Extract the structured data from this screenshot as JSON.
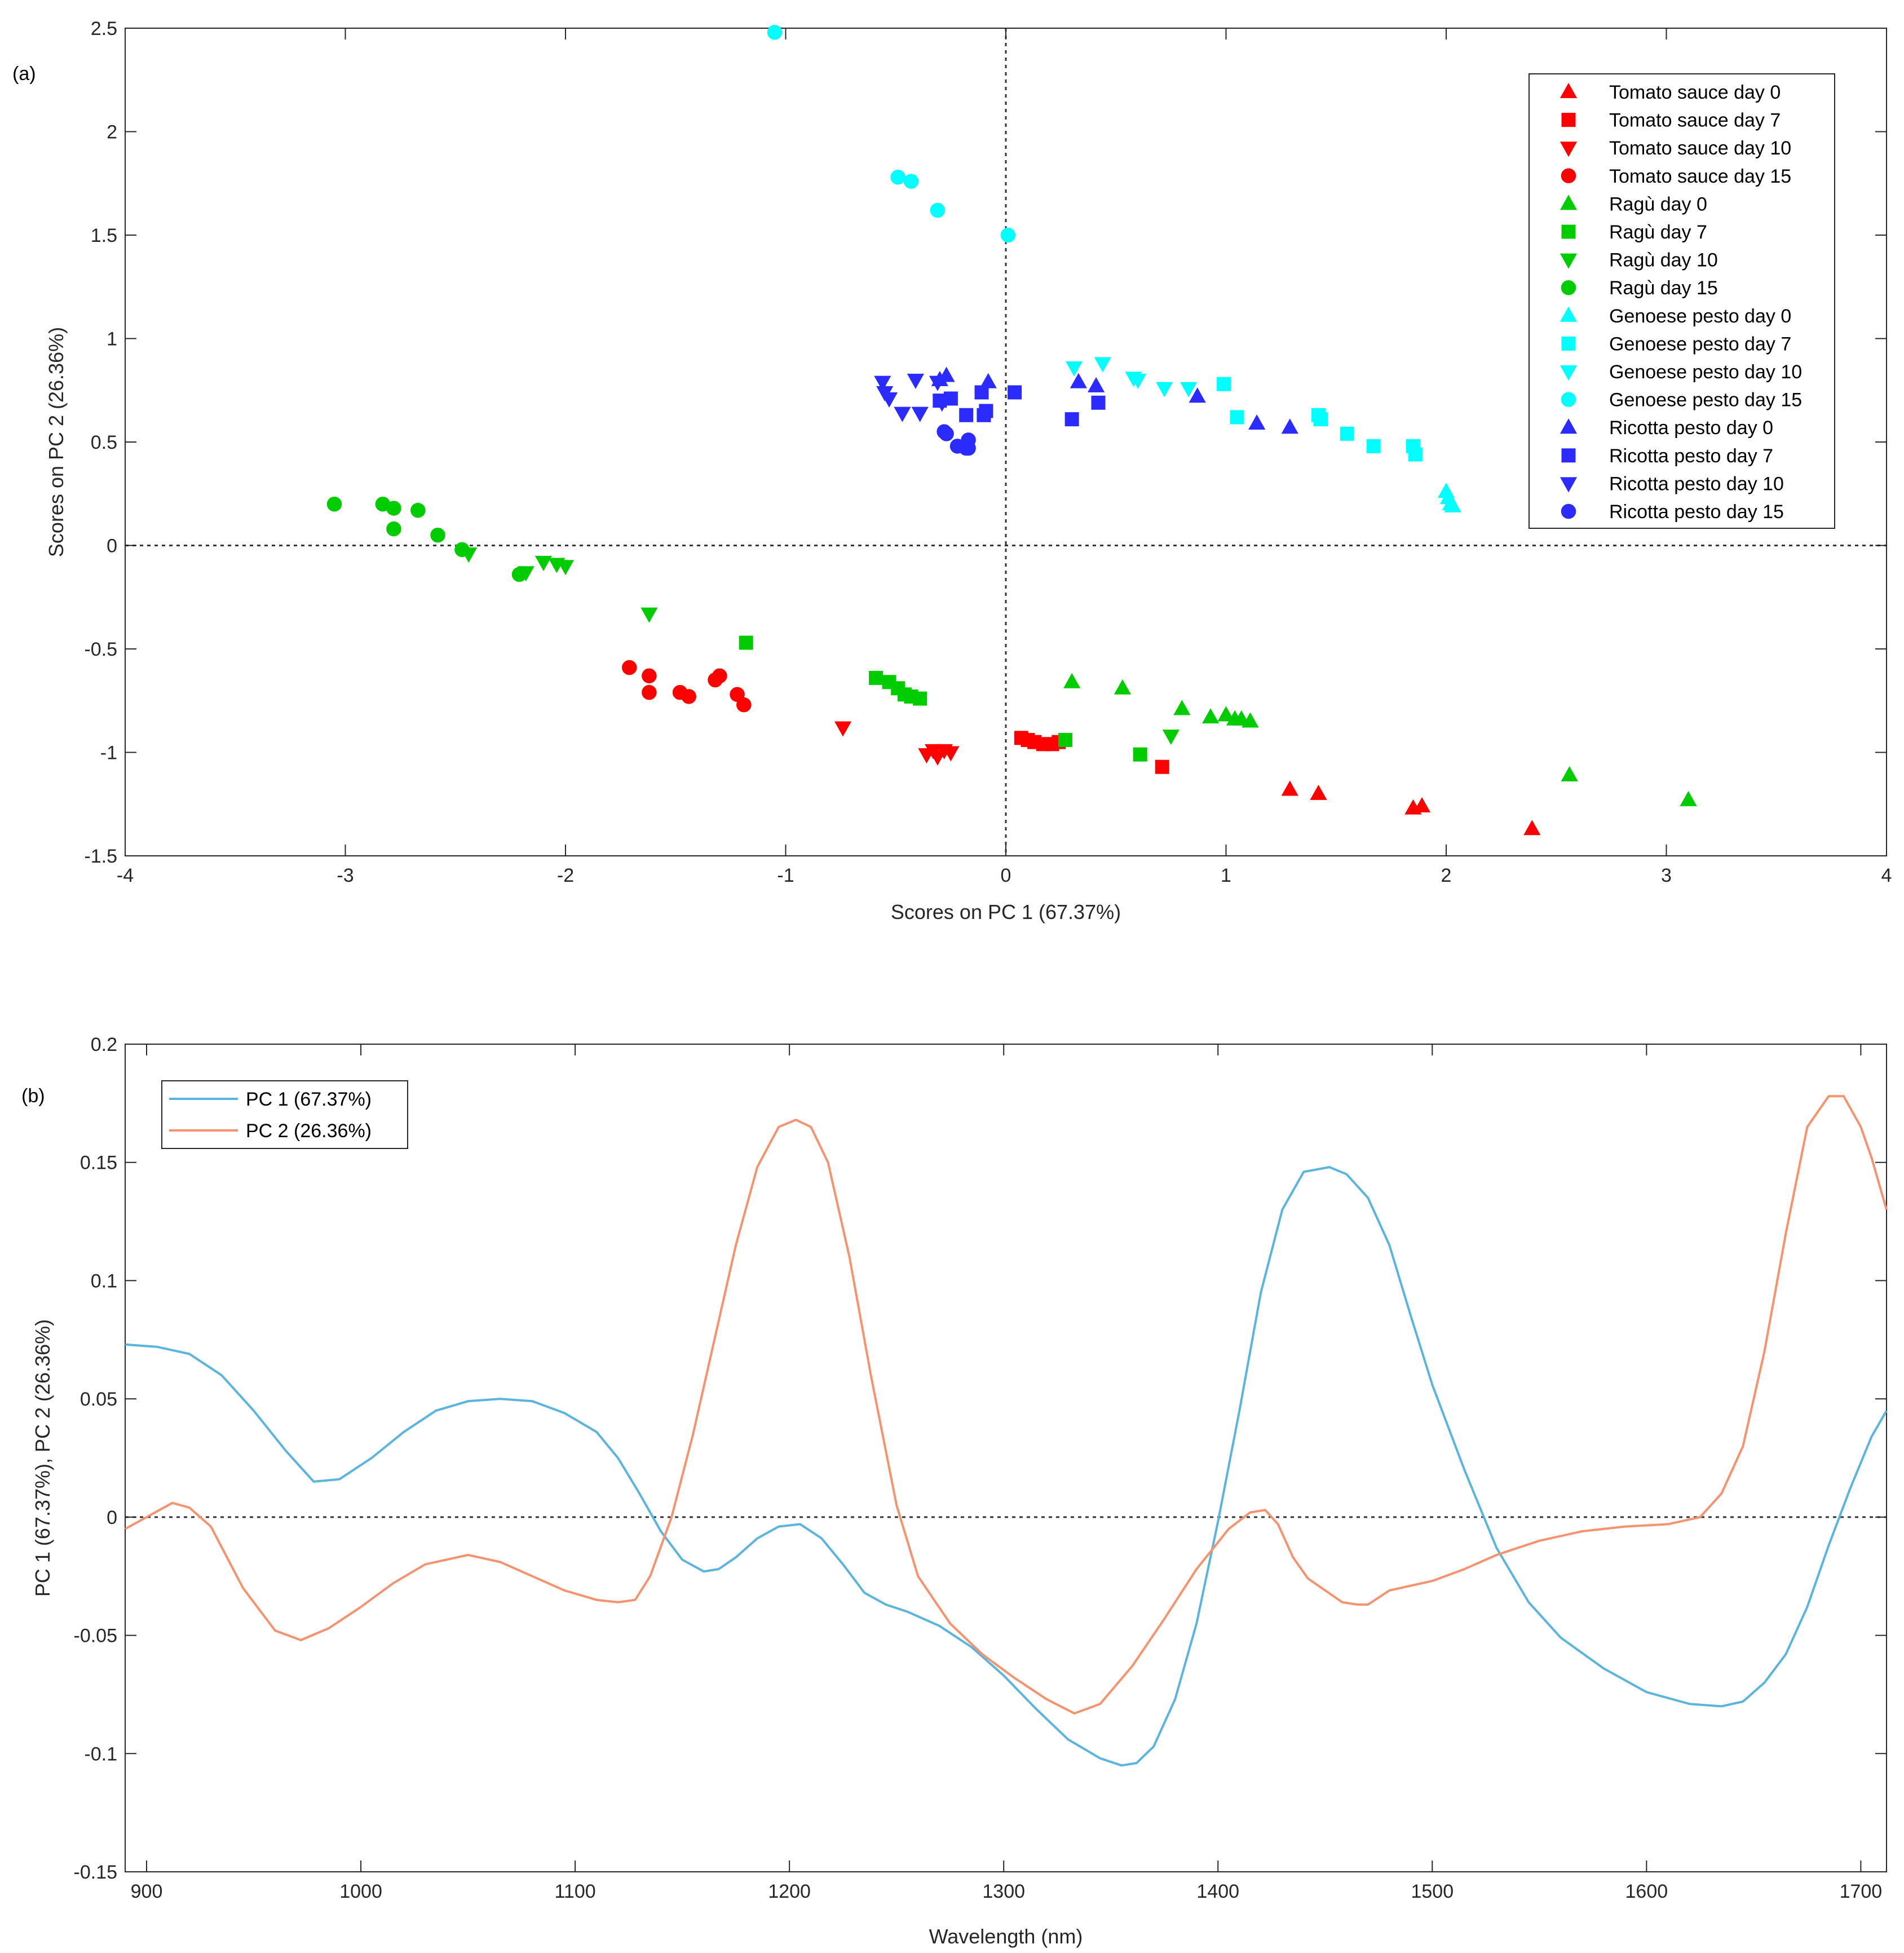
{
  "colors": {
    "tomato": "#ff0000",
    "ragu": "#00cc00",
    "genoese": "#00ffff",
    "ricotta": "#2b2bff",
    "pc1": "#5ab4e0",
    "pc2": "#f7926e",
    "axis": "#262626",
    "zero_line": "#333333"
  },
  "chart_data": [
    {
      "type": "scatter",
      "panel_label": "(a)",
      "title": "",
      "xlabel": "Scores on PC 1 (67.37%)",
      "ylabel": "Scores on PC 2 (26.36%)",
      "xlim": [
        -4,
        4
      ],
      "ylim": [
        -1.5,
        2.5
      ],
      "xticks": [
        -4,
        -3,
        -2,
        -1,
        0,
        1,
        2,
        3,
        4
      ],
      "xtick_labels": [
        "-4",
        "-3",
        "-2",
        "-1",
        "0",
        "1",
        "2",
        "3",
        "4"
      ],
      "yticks": [
        -1.5,
        -1,
        -0.5,
        0,
        0.5,
        1,
        1.5,
        2,
        2.5
      ],
      "ytick_labels": [
        "-1.5",
        "-1",
        "-0.5",
        "0",
        "0.5",
        "1",
        "1.5",
        "2",
        "2.5"
      ],
      "reference_lines": {
        "x": 0,
        "y": 0,
        "style": "dotted"
      },
      "legend_position": "top-right",
      "series": [
        {
          "name": "Tomato sauce day 0",
          "group": "tomato",
          "marker": "triangle-up",
          "points": [
            [
              1.29,
              -1.18
            ],
            [
              1.42,
              -1.2
            ],
            [
              1.85,
              -1.27
            ],
            [
              1.89,
              -1.26
            ],
            [
              2.39,
              -1.37
            ]
          ]
        },
        {
          "name": "Tomato sauce day 7",
          "group": "tomato",
          "marker": "square",
          "points": [
            [
              0.07,
              -0.93
            ],
            [
              0.1,
              -0.94
            ],
            [
              0.13,
              -0.95
            ],
            [
              0.17,
              -0.96
            ],
            [
              0.21,
              -0.96
            ],
            [
              0.24,
              -0.95
            ],
            [
              0.71,
              -1.07
            ]
          ]
        },
        {
          "name": "Tomato sauce day 10",
          "group": "tomato",
          "marker": "triangle-down",
          "points": [
            [
              -0.74,
              -0.88
            ],
            [
              -0.36,
              -1.01
            ],
            [
              -0.33,
              -0.99
            ],
            [
              -0.31,
              -1.02
            ],
            [
              -0.28,
              -0.99
            ],
            [
              -0.25,
              -1.0
            ]
          ]
        },
        {
          "name": "Tomato sauce day 15",
          "group": "tomato",
          "marker": "circle",
          "points": [
            [
              -1.71,
              -0.59
            ],
            [
              -1.62,
              -0.63
            ],
            [
              -1.62,
              -0.71
            ],
            [
              -1.48,
              -0.71
            ],
            [
              -1.44,
              -0.73
            ],
            [
              -1.32,
              -0.65
            ],
            [
              -1.3,
              -0.63
            ],
            [
              -1.22,
              -0.72
            ],
            [
              -1.19,
              -0.77
            ]
          ]
        },
        {
          "name": "Ragù day 0",
          "group": "ragu",
          "marker": "triangle-up",
          "points": [
            [
              0.3,
              -0.66
            ],
            [
              0.53,
              -0.69
            ],
            [
              0.8,
              -0.79
            ],
            [
              0.93,
              -0.83
            ],
            [
              1.0,
              -0.82
            ],
            [
              1.04,
              -0.84
            ],
            [
              1.07,
              -0.84
            ],
            [
              1.11,
              -0.85
            ],
            [
              2.56,
              -1.11
            ],
            [
              3.1,
              -1.23
            ]
          ]
        },
        {
          "name": "Ragù day 7",
          "group": "ragu",
          "marker": "square",
          "points": [
            [
              -1.18,
              -0.47
            ],
            [
              -0.59,
              -0.64
            ],
            [
              -0.53,
              -0.66
            ],
            [
              -0.49,
              -0.69
            ],
            [
              -0.46,
              -0.72
            ],
            [
              -0.43,
              -0.73
            ],
            [
              -0.39,
              -0.74
            ],
            [
              0.27,
              -0.94
            ],
            [
              0.61,
              -1.01
            ]
          ]
        },
        {
          "name": "Ragù day 10",
          "group": "ragu",
          "marker": "triangle-down",
          "points": [
            [
              -2.44,
              -0.04
            ],
            [
              -2.18,
              -0.13
            ],
            [
              -2.1,
              -0.08
            ],
            [
              -2.04,
              -0.09
            ],
            [
              -2.0,
              -0.1
            ],
            [
              -1.62,
              -0.33
            ],
            [
              0.75,
              -0.92
            ]
          ]
        },
        {
          "name": "Ragù day 15",
          "group": "ragu",
          "marker": "circle",
          "points": [
            [
              -3.05,
              0.2
            ],
            [
              -2.83,
              0.2
            ],
            [
              -2.78,
              0.18
            ],
            [
              -2.78,
              0.08
            ],
            [
              -2.67,
              0.17
            ],
            [
              -2.58,
              0.05
            ],
            [
              -2.47,
              -0.02
            ],
            [
              -2.21,
              -0.14
            ]
          ]
        },
        {
          "name": "Genoese pesto day 0",
          "group": "genoese",
          "marker": "triangle-up",
          "points": [
            [
              2.0,
              0.26
            ],
            [
              2.01,
              0.23
            ],
            [
              2.02,
              0.2
            ],
            [
              2.03,
              0.19
            ]
          ]
        },
        {
          "name": "Genoese pesto day 7",
          "group": "genoese",
          "marker": "square",
          "points": [
            [
              0.99,
              0.78
            ],
            [
              1.05,
              0.62
            ],
            [
              1.42,
              0.63
            ],
            [
              1.43,
              0.61
            ],
            [
              1.55,
              0.54
            ],
            [
              1.67,
              0.48
            ],
            [
              1.85,
              0.48
            ],
            [
              1.86,
              0.44
            ]
          ]
        },
        {
          "name": "Genoese pesto day 10",
          "group": "genoese",
          "marker": "triangle-down",
          "points": [
            [
              0.31,
              0.86
            ],
            [
              0.44,
              0.88
            ],
            [
              0.58,
              0.81
            ],
            [
              0.6,
              0.8
            ],
            [
              0.72,
              0.76
            ],
            [
              0.83,
              0.76
            ]
          ]
        },
        {
          "name": "Genoese pesto day 15",
          "group": "genoese",
          "marker": "circle",
          "points": [
            [
              -1.05,
              2.48
            ],
            [
              -0.49,
              1.78
            ],
            [
              -0.43,
              1.76
            ],
            [
              -0.31,
              1.62
            ],
            [
              0.01,
              1.5
            ]
          ]
        },
        {
          "name": "Ricotta pesto day 0",
          "group": "ricotta",
          "marker": "triangle-up",
          "points": [
            [
              -0.3,
              0.8
            ],
            [
              -0.27,
              0.82
            ],
            [
              -0.08,
              0.79
            ],
            [
              0.33,
              0.79
            ],
            [
              0.41,
              0.77
            ],
            [
              0.87,
              0.72
            ],
            [
              1.14,
              0.59
            ],
            [
              1.29,
              0.57
            ]
          ]
        },
        {
          "name": "Ricotta pesto day 7",
          "group": "ricotta",
          "marker": "square",
          "points": [
            [
              -0.3,
              0.7
            ],
            [
              -0.25,
              0.71
            ],
            [
              -0.18,
              0.63
            ],
            [
              -0.11,
              0.74
            ],
            [
              -0.1,
              0.63
            ],
            [
              -0.09,
              0.65
            ],
            [
              0.04,
              0.74
            ],
            [
              0.3,
              0.61
            ],
            [
              0.42,
              0.69
            ]
          ]
        },
        {
          "name": "Ricotta pesto day 10",
          "group": "ricotta",
          "marker": "triangle-down",
          "points": [
            [
              -0.56,
              0.79
            ],
            [
              -0.55,
              0.74
            ],
            [
              -0.53,
              0.71
            ],
            [
              -0.47,
              0.64
            ],
            [
              -0.41,
              0.8
            ],
            [
              -0.39,
              0.64
            ],
            [
              -0.31,
              0.79
            ],
            [
              -0.29,
              0.69
            ]
          ]
        },
        {
          "name": "Ricotta pesto day 15",
          "group": "ricotta",
          "marker": "circle",
          "points": [
            [
              -0.28,
              0.55
            ],
            [
              -0.27,
              0.54
            ],
            [
              -0.22,
              0.48
            ],
            [
              -0.18,
              0.47
            ],
            [
              -0.17,
              0.51
            ],
            [
              -0.17,
              0.47
            ]
          ]
        }
      ]
    },
    {
      "type": "line",
      "panel_label": "(b)",
      "title": "",
      "xlabel": "Wavelength (nm)",
      "ylabel": "PC 1 (67.37%), PC 2 (26.36%)",
      "xlim": [
        890,
        1712
      ],
      "ylim": [
        -0.15,
        0.2
      ],
      "xticks": [
        900,
        1000,
        1100,
        1200,
        1300,
        1400,
        1500,
        1600,
        1700
      ],
      "xtick_labels": [
        "900",
        "1000",
        "1100",
        "1200",
        "1300",
        "1400",
        "1500",
        "1600",
        "1700"
      ],
      "yticks": [
        -0.15,
        -0.1,
        -0.05,
        0,
        0.05,
        0.1,
        0.15,
        0.2
      ],
      "ytick_labels": [
        "-0.15",
        "-0.1",
        "-0.05",
        "0",
        "0.05",
        "0.1",
        "0.15",
        "0.2"
      ],
      "reference_lines": {
        "y": 0,
        "style": "dotted"
      },
      "legend_position": "top-left",
      "series": [
        {
          "name": "PC 1 (67.37%)",
          "color_key": "pc1",
          "x": [
            890,
            905,
            920,
            935,
            950,
            965,
            978,
            990,
            1005,
            1020,
            1035,
            1050,
            1065,
            1080,
            1095,
            1110,
            1120,
            1130,
            1140,
            1150,
            1160,
            1167,
            1175,
            1185,
            1195,
            1205,
            1215,
            1225,
            1235,
            1245,
            1255,
            1270,
            1285,
            1300,
            1315,
            1330,
            1345,
            1355,
            1362,
            1370,
            1380,
            1390,
            1400,
            1410,
            1420,
            1430,
            1440,
            1452,
            1460,
            1470,
            1480,
            1490,
            1500,
            1515,
            1530,
            1545,
            1560,
            1580,
            1600,
            1620,
            1635,
            1645,
            1655,
            1665,
            1675,
            1685,
            1695,
            1705,
            1712
          ],
          "y": [
            0.073,
            0.072,
            0.069,
            0.06,
            0.045,
            0.028,
            0.015,
            0.016,
            0.025,
            0.036,
            0.045,
            0.049,
            0.05,
            0.049,
            0.044,
            0.036,
            0.025,
            0.01,
            -0.006,
            -0.018,
            -0.023,
            -0.022,
            -0.017,
            -0.009,
            -0.004,
            -0.003,
            -0.009,
            -0.02,
            -0.032,
            -0.037,
            -0.04,
            -0.046,
            -0.055,
            -0.067,
            -0.081,
            -0.094,
            -0.102,
            -0.105,
            -0.104,
            -0.097,
            -0.077,
            -0.045,
            -0.002,
            0.045,
            0.095,
            0.13,
            0.146,
            0.148,
            0.145,
            0.135,
            0.115,
            0.085,
            0.056,
            0.02,
            -0.013,
            -0.036,
            -0.051,
            -0.064,
            -0.074,
            -0.079,
            -0.08,
            -0.078,
            -0.07,
            -0.058,
            -0.038,
            -0.012,
            0.012,
            0.034,
            0.045
          ]
        },
        {
          "name": "PC 2 (26.36%)",
          "color_key": "pc2",
          "x": [
            890,
            900,
            912,
            920,
            930,
            945,
            960,
            972,
            985,
            1000,
            1015,
            1030,
            1050,
            1065,
            1080,
            1095,
            1110,
            1120,
            1128,
            1135,
            1145,
            1155,
            1165,
            1175,
            1185,
            1195,
            1203,
            1210,
            1218,
            1228,
            1238,
            1250,
            1260,
            1275,
            1290,
            1305,
            1320,
            1333,
            1345,
            1360,
            1375,
            1390,
            1405,
            1415,
            1422,
            1428,
            1435,
            1442,
            1450,
            1458,
            1465,
            1470,
            1475,
            1480,
            1490,
            1500,
            1515,
            1530,
            1550,
            1570,
            1590,
            1610,
            1625,
            1635,
            1645,
            1655,
            1665,
            1675,
            1685,
            1692,
            1700,
            1705,
            1712
          ],
          "y": [
            -0.005,
            0.0,
            0.006,
            0.004,
            -0.004,
            -0.03,
            -0.048,
            -0.052,
            -0.047,
            -0.038,
            -0.028,
            -0.02,
            -0.016,
            -0.019,
            -0.025,
            -0.031,
            -0.035,
            -0.036,
            -0.035,
            -0.025,
            0.0,
            0.035,
            0.075,
            0.115,
            0.148,
            0.165,
            0.168,
            0.165,
            0.15,
            0.11,
            0.06,
            0.005,
            -0.025,
            -0.045,
            -0.058,
            -0.068,
            -0.077,
            -0.083,
            -0.079,
            -0.063,
            -0.043,
            -0.022,
            -0.005,
            0.002,
            0.003,
            -0.003,
            -0.017,
            -0.026,
            -0.031,
            -0.036,
            -0.037,
            -0.037,
            -0.034,
            -0.031,
            -0.029,
            -0.027,
            -0.022,
            -0.016,
            -0.01,
            -0.006,
            -0.004,
            -0.003,
            0.0,
            0.01,
            0.03,
            0.07,
            0.12,
            0.165,
            0.178,
            0.178,
            0.165,
            0.152,
            0.13
          ]
        }
      ]
    }
  ]
}
